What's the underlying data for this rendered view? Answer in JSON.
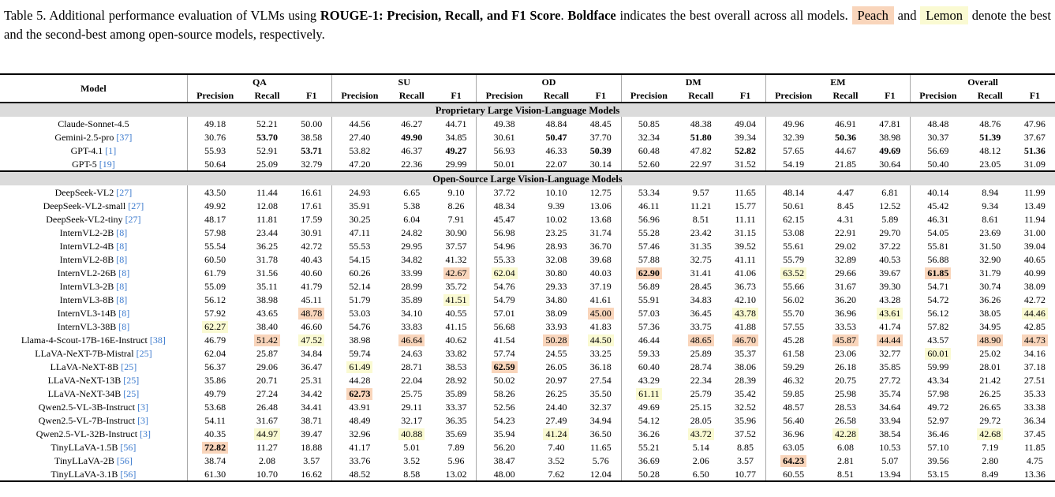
{
  "caption": {
    "t1": "Table 5.  Additional performance evaluation of VLMs using ",
    "b1": "ROUGE-1: Precision, Recall, and F1 Score",
    "t2": ". ",
    "b2": "Boldface",
    "t3": " indicates the best overall across all models. ",
    "peach": "Peach",
    "t4": " and ",
    "lemon": "Lemon",
    "t5": " denote the best and the second-best among open-source models, respectively."
  },
  "colors": {
    "peach": "#F9D5BB",
    "lemon": "#FAFAD2",
    "band": "#DBDBDB",
    "cite": "#3D7BCE",
    "sep": "#A8A8A8"
  },
  "table": {
    "model_header": "Model",
    "groups": [
      "QA",
      "SU",
      "OD",
      "DM",
      "EM",
      "Overall"
    ],
    "subheaders": [
      "Precision",
      "Recall",
      "F1"
    ],
    "sections": [
      {
        "title": "Proprietary Large Vision-Language Models",
        "rows": [
          {
            "model": "Claude-Sonnet-4.5",
            "cite": "",
            "v": [
              "49.18",
              "52.21",
              "50.00",
              "44.56",
              "46.27",
              "44.71",
              "49.38",
              "48.84",
              "48.45",
              "50.85",
              "48.38",
              "49.04",
              "49.96",
              "46.91",
              "47.81",
              "48.48",
              "48.76",
              "47.96"
            ]
          },
          {
            "model": "Gemini-2.5-pro",
            "cite": "[37]",
            "v": [
              "30.76",
              "53.70",
              "38.58",
              "27.40",
              "49.90",
              "34.85",
              "30.61",
              "50.47",
              "37.70",
              "32.34",
              "51.80",
              "39.34",
              "32.39",
              "50.36",
              "38.98",
              "30.37",
              "51.39",
              "37.67"
            ],
            "bold": [
              1,
              4,
              7,
              10,
              13,
              16
            ]
          },
          {
            "model": "GPT-4.1",
            "cite": "[1]",
            "v": [
              "55.93",
              "52.91",
              "53.71",
              "53.82",
              "46.37",
              "49.27",
              "56.93",
              "46.33",
              "50.39",
              "60.48",
              "47.82",
              "52.82",
              "57.65",
              "44.67",
              "49.69",
              "56.69",
              "48.12",
              "51.36"
            ],
            "bold": [
              2,
              5,
              8,
              11,
              14,
              17
            ]
          },
          {
            "model": "GPT-5",
            "cite": "[19]",
            "v": [
              "50.64",
              "25.09",
              "32.79",
              "47.20",
              "22.36",
              "29.99",
              "50.01",
              "22.07",
              "30.14",
              "52.60",
              "22.97",
              "31.52",
              "54.19",
              "21.85",
              "30.64",
              "50.40",
              "23.05",
              "31.09"
            ]
          }
        ]
      },
      {
        "title": "Open-Source Large Vision-Language Models",
        "rows": [
          {
            "model": "DeepSeek-VL2",
            "cite": "[27]",
            "v": [
              "43.50",
              "11.44",
              "16.61",
              "24.93",
              "6.65",
              "9.10",
              "37.72",
              "10.10",
              "12.75",
              "53.34",
              "9.57",
              "11.65",
              "48.14",
              "4.47",
              "6.81",
              "40.14",
              "8.94",
              "11.99"
            ]
          },
          {
            "model": "DeepSeek-VL2-small",
            "cite": "[27]",
            "v": [
              "49.92",
              "12.08",
              "17.61",
              "35.91",
              "5.38",
              "8.26",
              "48.34",
              "9.39",
              "13.06",
              "46.11",
              "11.21",
              "15.77",
              "50.61",
              "8.45",
              "12.52",
              "45.42",
              "9.34",
              "13.49"
            ]
          },
          {
            "model": "DeepSeek-VL2-tiny",
            "cite": "[27]",
            "v": [
              "48.17",
              "11.81",
              "17.59",
              "30.25",
              "6.04",
              "7.91",
              "45.47",
              "10.02",
              "13.68",
              "56.96",
              "8.51",
              "11.11",
              "62.15",
              "4.31",
              "5.89",
              "46.31",
              "8.61",
              "11.94"
            ]
          },
          {
            "model": "InternVL2-2B",
            "cite": "[8]",
            "v": [
              "57.98",
              "23.44",
              "30.91",
              "47.11",
              "24.82",
              "30.90",
              "56.98",
              "23.25",
              "31.74",
              "55.28",
              "23.42",
              "31.15",
              "53.08",
              "22.91",
              "29.70",
              "54.05",
              "23.69",
              "31.00"
            ]
          },
          {
            "model": "InternVL2-4B",
            "cite": "[8]",
            "v": [
              "55.54",
              "36.25",
              "42.72",
              "55.53",
              "29.95",
              "37.57",
              "54.96",
              "28.93",
              "36.70",
              "57.46",
              "31.35",
              "39.52",
              "55.61",
              "29.02",
              "37.22",
              "55.81",
              "31.50",
              "39.04"
            ]
          },
          {
            "model": "InternVL2-8B",
            "cite": "[8]",
            "v": [
              "60.50",
              "31.78",
              "40.43",
              "54.15",
              "34.82",
              "41.32",
              "55.33",
              "32.08",
              "39.68",
              "57.88",
              "32.75",
              "41.11",
              "55.79",
              "32.89",
              "40.53",
              "56.88",
              "32.90",
              "40.65"
            ]
          },
          {
            "model": "InternVL2-26B",
            "cite": "[8]",
            "v": [
              "61.79",
              "31.56",
              "40.60",
              "60.26",
              "33.99",
              "42.67",
              "62.04",
              "30.80",
              "40.03",
              "62.90",
              "31.41",
              "41.06",
              "63.52",
              "29.66",
              "39.67",
              "61.85",
              "31.79",
              "40.99"
            ],
            "bold": [
              9,
              15
            ],
            "peach": [
              5,
              9,
              15
            ],
            "lemon": [
              6,
              12
            ]
          },
          {
            "model": "InternVL3-2B",
            "cite": "[8]",
            "v": [
              "55.09",
              "35.11",
              "41.79",
              "52.14",
              "28.99",
              "35.72",
              "54.76",
              "29.33",
              "37.19",
              "56.89",
              "28.45",
              "36.73",
              "55.66",
              "31.67",
              "39.30",
              "54.71",
              "30.74",
              "38.09"
            ]
          },
          {
            "model": "InternVL3-8B",
            "cite": "[8]",
            "v": [
              "56.12",
              "38.98",
              "45.11",
              "51.79",
              "35.89",
              "41.51",
              "54.79",
              "34.80",
              "41.61",
              "55.91",
              "34.83",
              "42.10",
              "56.02",
              "36.20",
              "43.28",
              "54.72",
              "36.26",
              "42.72"
            ],
            "lemon": [
              5
            ]
          },
          {
            "model": "InternVL3-14B",
            "cite": "[8]",
            "v": [
              "57.92",
              "43.65",
              "48.78",
              "53.03",
              "34.10",
              "40.55",
              "57.01",
              "38.09",
              "45.00",
              "57.03",
              "36.45",
              "43.78",
              "55.70",
              "36.96",
              "43.61",
              "56.12",
              "38.05",
              "44.46"
            ],
            "peach": [
              2,
              8
            ],
            "lemon": [
              11,
              14,
              17
            ]
          },
          {
            "model": "InternVL3-38B",
            "cite": "[8]",
            "v": [
              "62.27",
              "38.40",
              "46.60",
              "54.76",
              "33.83",
              "41.15",
              "56.68",
              "33.93",
              "41.83",
              "57.36",
              "33.75",
              "41.88",
              "57.55",
              "33.53",
              "41.74",
              "57.82",
              "34.95",
              "42.85"
            ],
            "lemon": [
              0
            ]
          },
          {
            "model": "Llama-4-Scout-17B-16E-Instruct",
            "cite": "[38]",
            "v": [
              "46.79",
              "51.42",
              "47.52",
              "38.98",
              "46.64",
              "40.62",
              "41.54",
              "50.28",
              "44.50",
              "46.44",
              "48.65",
              "46.70",
              "45.28",
              "45.87",
              "44.44",
              "43.57",
              "48.90",
              "44.73"
            ],
            "peach": [
              1,
              4,
              7,
              10,
              11,
              13,
              14,
              16,
              17
            ],
            "lemon": [
              2,
              8
            ]
          },
          {
            "model": "LLaVA-NeXT-7B-Mistral",
            "cite": "[25]",
            "v": [
              "62.04",
              "25.87",
              "34.84",
              "59.74",
              "24.63",
              "33.82",
              "57.74",
              "24.55",
              "33.25",
              "59.33",
              "25.89",
              "35.37",
              "61.58",
              "23.06",
              "32.77",
              "60.01",
              "25.02",
              "34.16"
            ],
            "lemon": [
              15
            ]
          },
          {
            "model": "LLaVA-NeXT-8B",
            "cite": "[25]",
            "v": [
              "56.37",
              "29.06",
              "36.47",
              "61.49",
              "28.71",
              "38.53",
              "62.59",
              "26.05",
              "36.18",
              "60.40",
              "28.74",
              "38.06",
              "59.29",
              "26.18",
              "35.85",
              "59.99",
              "28.01",
              "37.18"
            ],
            "bold": [
              6
            ],
            "peach": [
              6
            ],
            "lemon": [
              3
            ]
          },
          {
            "model": "LLaVA-NeXT-13B",
            "cite": "[25]",
            "v": [
              "35.86",
              "20.71",
              "25.31",
              "44.28",
              "22.04",
              "28.92",
              "50.02",
              "20.97",
              "27.54",
              "43.29",
              "22.34",
              "28.39",
              "46.32",
              "20.75",
              "27.72",
              "43.34",
              "21.42",
              "27.51"
            ]
          },
          {
            "model": "LLaVA-NeXT-34B",
            "cite": "[25]",
            "v": [
              "49.79",
              "27.24",
              "34.42",
              "62.73",
              "25.75",
              "35.89",
              "58.26",
              "26.25",
              "35.50",
              "61.11",
              "25.79",
              "35.42",
              "59.85",
              "25.98",
              "35.74",
              "57.98",
              "26.25",
              "35.33"
            ],
            "bold": [
              3
            ],
            "peach": [
              3
            ],
            "lemon": [
              9
            ]
          },
          {
            "model": "Qwen2.5-VL-3B-Instruct",
            "cite": "[3]",
            "v": [
              "53.68",
              "26.48",
              "34.41",
              "43.91",
              "29.11",
              "33.37",
              "52.56",
              "24.40",
              "32.37",
              "49.69",
              "25.15",
              "32.52",
              "48.57",
              "28.53",
              "34.64",
              "49.72",
              "26.65",
              "33.38"
            ]
          },
          {
            "model": "Qwen2.5-VL-7B-Instruct",
            "cite": "[3]",
            "v": [
              "54.11",
              "31.67",
              "38.71",
              "48.49",
              "32.17",
              "36.35",
              "54.23",
              "27.49",
              "34.94",
              "54.12",
              "28.05",
              "35.96",
              "56.40",
              "26.58",
              "33.94",
              "52.97",
              "29.72",
              "36.34"
            ]
          },
          {
            "model": "Qwen2.5-VL-32B-Instruct",
            "cite": "[3]",
            "v": [
              "40.35",
              "44.97",
              "39.47",
              "32.96",
              "40.88",
              "35.69",
              "35.94",
              "41.24",
              "36.50",
              "36.26",
              "43.72",
              "37.52",
              "36.96",
              "42.28",
              "38.54",
              "36.46",
              "42.68",
              "37.45"
            ],
            "lemon": [
              1,
              4,
              7,
              10,
              13,
              16
            ]
          },
          {
            "model": "TinyLLaVA-1.5B",
            "cite": "[56]",
            "v": [
              "72.82",
              "11.27",
              "18.88",
              "41.17",
              "5.01",
              "7.89",
              "56.20",
              "7.40",
              "11.65",
              "55.21",
              "5.14",
              "8.85",
              "63.05",
              "6.08",
              "10.53",
              "57.10",
              "7.19",
              "11.85"
            ],
            "bold": [
              0
            ],
            "peach": [
              0
            ]
          },
          {
            "model": "TinyLLaVA-2B",
            "cite": "[56]",
            "v": [
              "38.74",
              "2.08",
              "3.57",
              "33.76",
              "3.52",
              "5.96",
              "38.47",
              "3.52",
              "5.76",
              "36.69",
              "2.06",
              "3.57",
              "64.23",
              "2.81",
              "5.07",
              "39.56",
              "2.80",
              "4.75"
            ],
            "bold": [
              12
            ],
            "peach": [
              12
            ]
          },
          {
            "model": "TinyLLaVA-3.1B",
            "cite": "[56]",
            "v": [
              "61.30",
              "10.70",
              "16.62",
              "48.52",
              "8.58",
              "13.02",
              "48.00",
              "7.62",
              "12.04",
              "50.28",
              "6.50",
              "10.77",
              "60.55",
              "8.51",
              "13.94",
              "53.15",
              "8.49",
              "13.36"
            ]
          }
        ]
      }
    ]
  }
}
